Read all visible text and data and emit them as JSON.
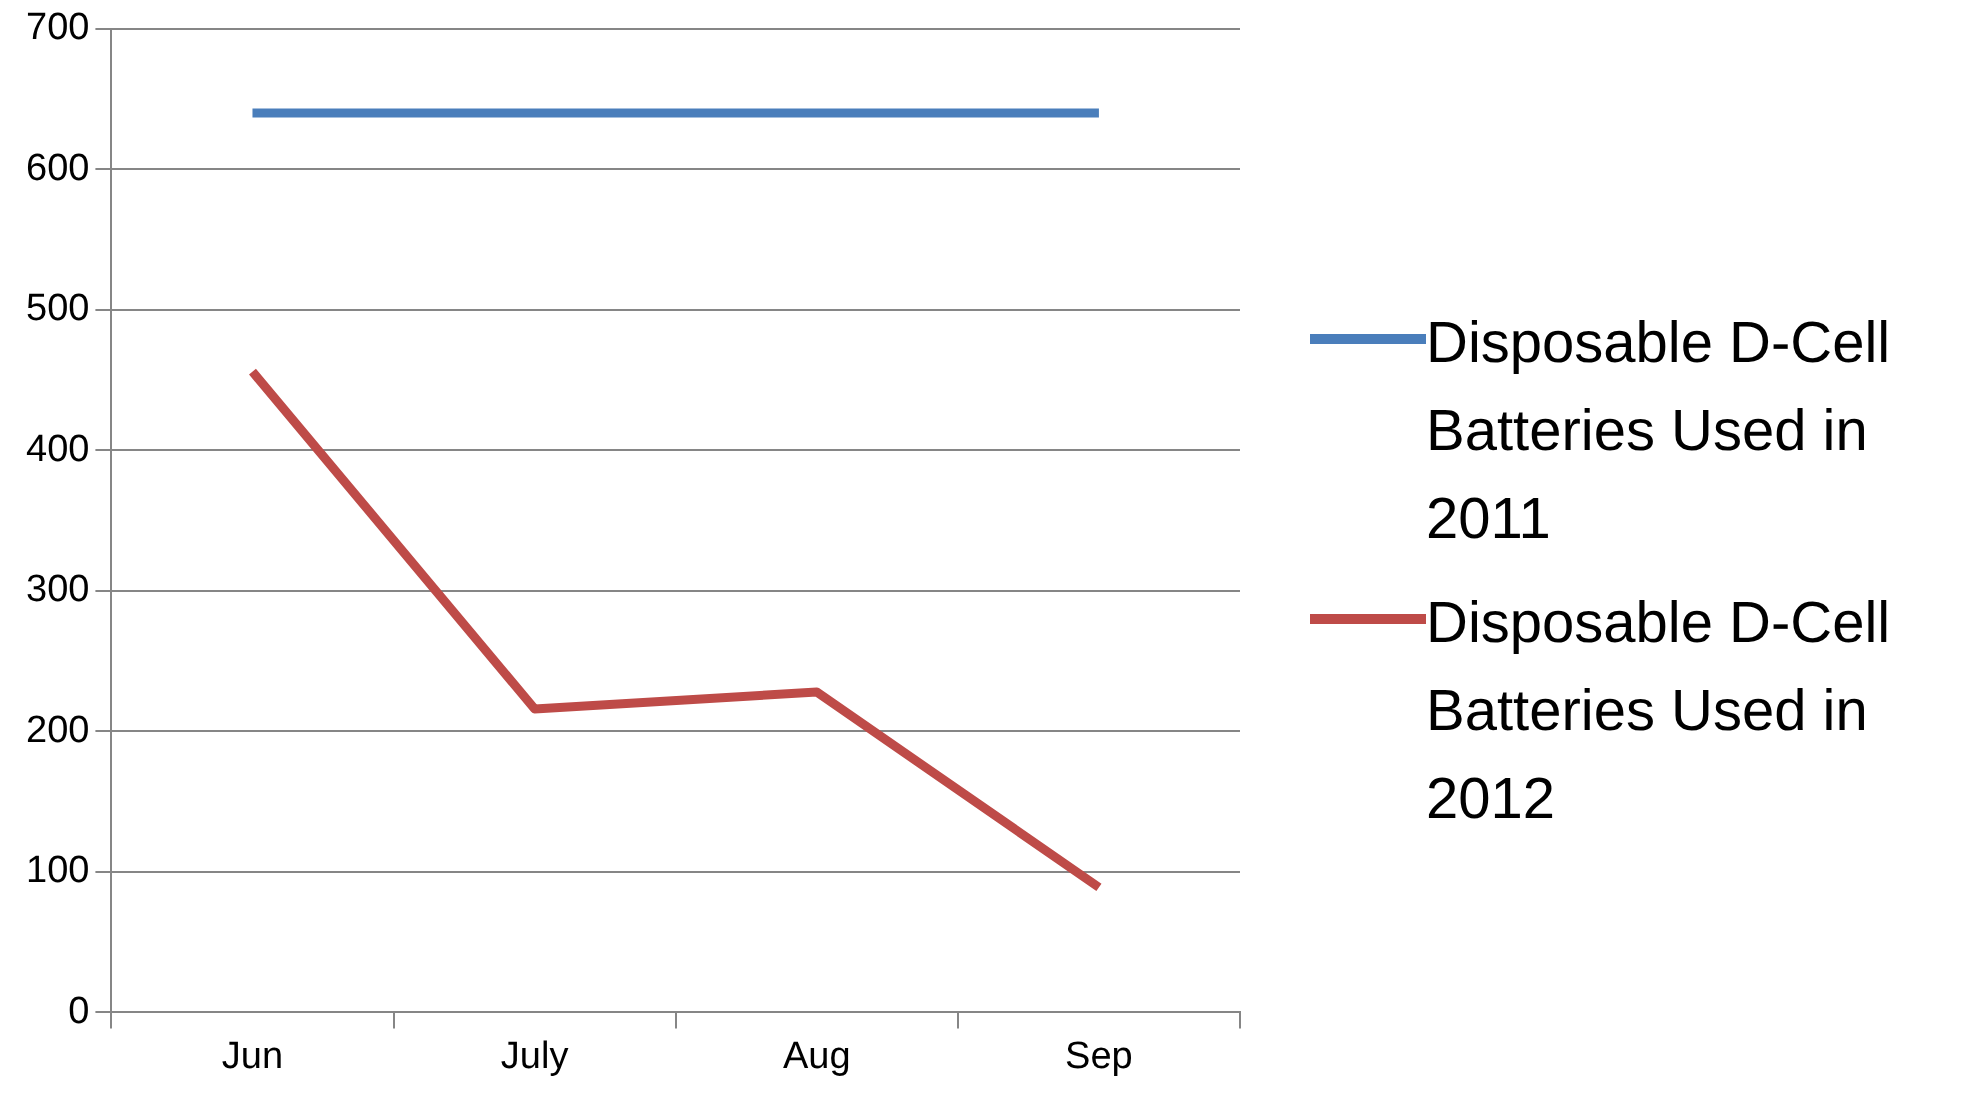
{
  "chart_data": {
    "type": "line",
    "categories": [
      "Jun",
      "July",
      "Aug",
      "Sep"
    ],
    "series": [
      {
        "name": "Disposable D-Cell Batteries Used in 2011",
        "color": "#4a7ebb",
        "values": [
          640,
          640,
          640,
          640
        ]
      },
      {
        "name": "Disposable D-Cell Batteries Used in 2012",
        "color": "#be4b48",
        "values": [
          456,
          216,
          228,
          89
        ]
      }
    ],
    "ylim": [
      0,
      700
    ],
    "yticks": [
      0,
      100,
      200,
      300,
      400,
      500,
      600,
      700
    ],
    "grid": "y",
    "legend": "right",
    "marker": "none",
    "line_style": "solid"
  }
}
